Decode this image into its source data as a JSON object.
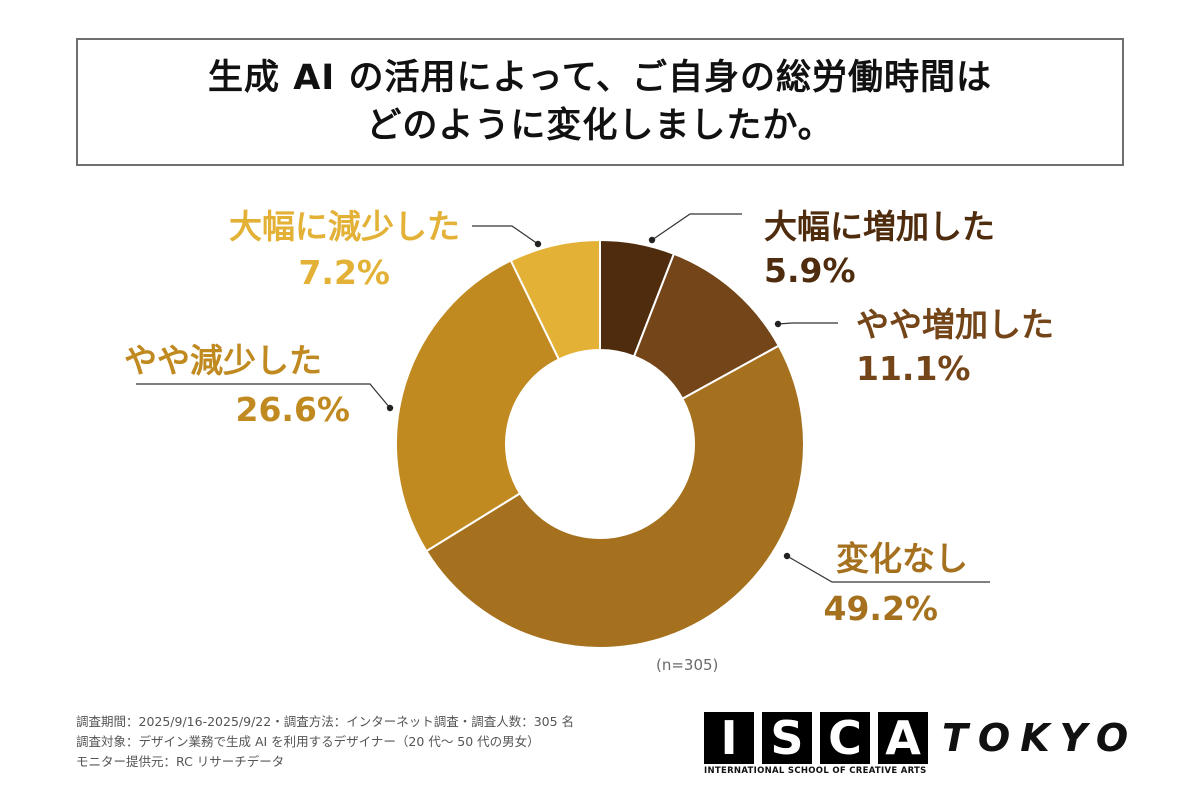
{
  "title": {
    "line1": "生成 AI の活用によって、ご自身の総労働時間は",
    "line2": "どのように変化しましたか。"
  },
  "chart_data": {
    "type": "pie",
    "donut": true,
    "title": "生成 AI の活用によって、ご自身の総労働時間はどのように変化しましたか。",
    "categories": [
      "大幅に増加した",
      "やや増加した",
      "変化なし",
      "やや減少した",
      "大幅に減少した"
    ],
    "values": [
      5.9,
      11.1,
      49.2,
      26.6,
      7.2
    ],
    "labels": [
      "5.9%",
      "11.1%",
      "49.2%",
      "26.6%",
      "7.2%"
    ],
    "colors": [
      "#4e2c0d",
      "#734518",
      "#a5711f",
      "#c08a20",
      "#e3b136"
    ],
    "label_colors": [
      "#4e2c0d",
      "#734518",
      "#a5711f",
      "#c08a20",
      "#e3b136"
    ]
  },
  "sample_note": "(n=305)",
  "footnotes": {
    "line1": "調査期間：2025/9/16-2025/9/22・調査方法：インターネット調査・調査人数：305 名",
    "line2": "調査対象：デザイン業務で生成 AI を利用するデザイナー（20 代〜 50 代の男女）",
    "line3": "モニター提供元：RC リサーチデータ"
  },
  "logo": {
    "letters": [
      "I",
      "S",
      "C",
      "A"
    ],
    "city": "TOKYO",
    "subtitle": "INTERNATIONAL SCHOOL OF CREATIVE ARTS"
  }
}
